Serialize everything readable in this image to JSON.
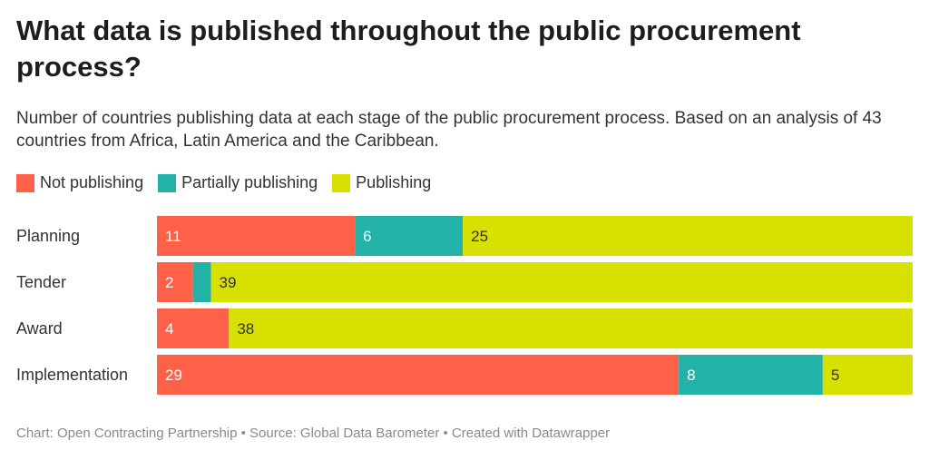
{
  "title": "What data is published throughout the public procurement process?",
  "subtitle": "Number of countries publishing data at each stage of the public procurement process. Based on an analysis of 43 countries from Africa, Latin America and the Caribbean.",
  "footer": "Chart: Open Contracting Partnership • Source: Global Data Barometer • Created with Datawrapper",
  "chart_data": {
    "type": "bar",
    "orientation": "horizontal",
    "stacked": true,
    "categories": [
      "Planning",
      "Tender",
      "Award",
      "Implementation"
    ],
    "series": [
      {
        "name": "Not publishing",
        "color": "#fe6148",
        "label_color": "#ffffff",
        "values": [
          11,
          2,
          4,
          29
        ]
      },
      {
        "name": "Partially publishing",
        "color": "#22b2a8",
        "label_color": "#ffffff",
        "values": [
          6,
          1,
          0,
          8
        ]
      },
      {
        "name": "Publishing",
        "color": "#d8e000",
        "label_color": "#333333",
        "values": [
          25,
          39,
          38,
          5
        ]
      }
    ],
    "hidden_labels": [
      [
        1,
        1
      ]
    ],
    "legend_position": "top-left",
    "grid": false
  }
}
